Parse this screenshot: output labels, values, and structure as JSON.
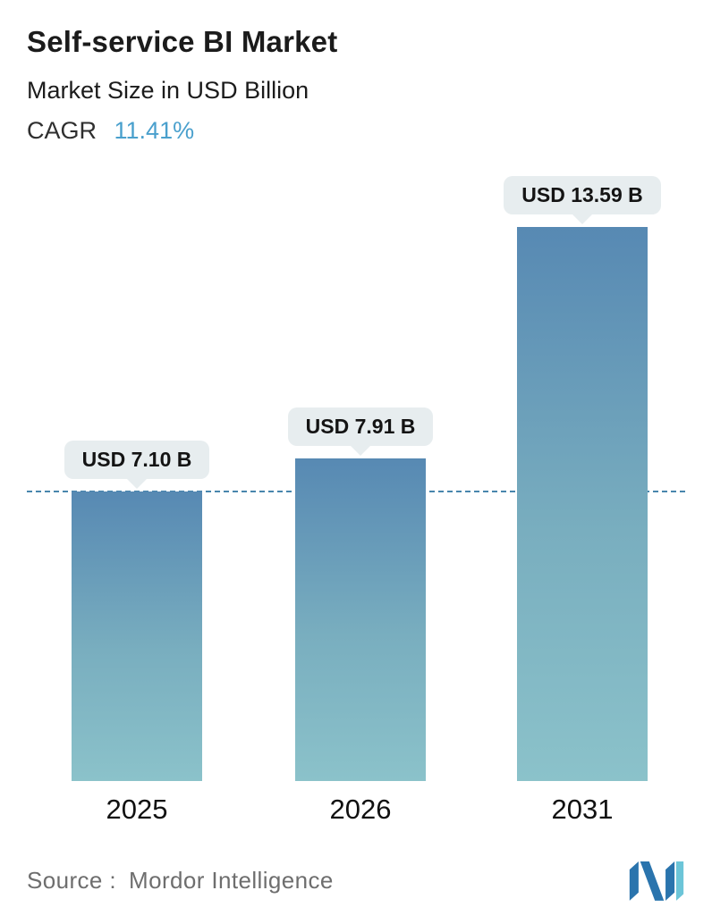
{
  "header": {
    "title": "Self-service BI Market",
    "subtitle": "Market Size in USD Billion",
    "cagr_label": "CAGR",
    "cagr_value": "11.41%",
    "cagr_value_color": "#4aa0cd"
  },
  "chart_data": {
    "type": "bar",
    "title": "Self-service BI Market",
    "subtitle": "Market Size in USD Billion",
    "categories": [
      "2025",
      "2026",
      "2031"
    ],
    "values": [
      7.1,
      7.91,
      13.59
    ],
    "value_labels": [
      "USD 7.10 B",
      "USD 7.91 B",
      "USD 13.59 B"
    ],
    "unit": "USD Billion",
    "ylim": [
      0,
      13.59
    ],
    "grid": false,
    "legend": false,
    "reference_line": {
      "at_value": 7.1,
      "style": "dashed",
      "color": "#4886ad"
    },
    "bar_gradient_top": "#5789b3",
    "bar_gradient_bottom": "#8bc2ca",
    "label_pill_bg": "#e7edef"
  },
  "footer": {
    "source_label": "Source :",
    "source_value": "Mordor Intelligence",
    "logo": "mordor-intelligence-logo"
  }
}
